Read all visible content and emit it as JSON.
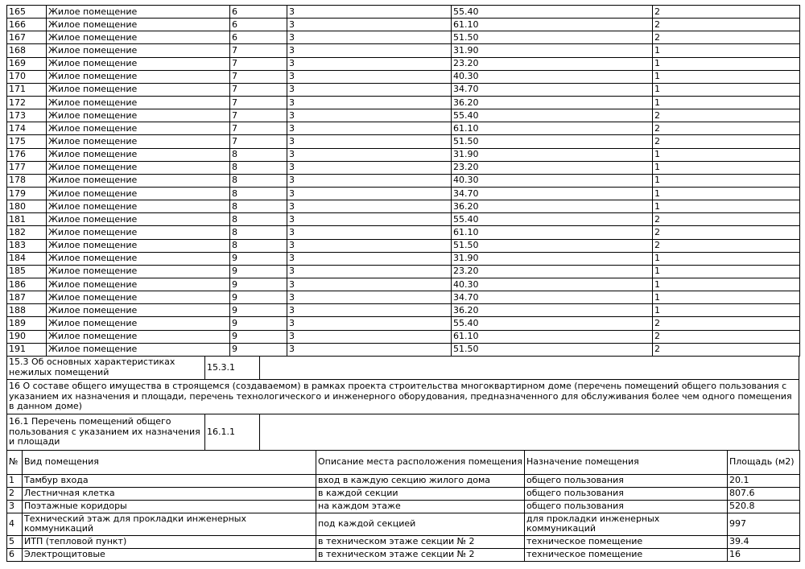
{
  "units_table": {
    "rows": [
      [
        "165",
        "Жилое помещение",
        "6",
        "3",
        "55.40",
        "2"
      ],
      [
        "166",
        "Жилое помещение",
        "6",
        "3",
        "61.10",
        "2"
      ],
      [
        "167",
        "Жилое помещение",
        "6",
        "3",
        "51.50",
        "2"
      ],
      [
        "168",
        "Жилое помещение",
        "7",
        "3",
        "31.90",
        "1"
      ],
      [
        "169",
        "Жилое помещение",
        "7",
        "3",
        "23.20",
        "1"
      ],
      [
        "170",
        "Жилое помещение",
        "7",
        "3",
        "40.30",
        "1"
      ],
      [
        "171",
        "Жилое помещение",
        "7",
        "3",
        "34.70",
        "1"
      ],
      [
        "172",
        "Жилое помещение",
        "7",
        "3",
        "36.20",
        "1"
      ],
      [
        "173",
        "Жилое помещение",
        "7",
        "3",
        "55.40",
        "2"
      ],
      [
        "174",
        "Жилое помещение",
        "7",
        "3",
        "61.10",
        "2"
      ],
      [
        "175",
        "Жилое помещение",
        "7",
        "3",
        "51.50",
        "2"
      ],
      [
        "176",
        "Жилое помещение",
        "8",
        "3",
        "31.90",
        "1"
      ],
      [
        "177",
        "Жилое помещение",
        "8",
        "3",
        "23.20",
        "1"
      ],
      [
        "178",
        "Жилое помещение",
        "8",
        "3",
        "40.30",
        "1"
      ],
      [
        "179",
        "Жилое помещение",
        "8",
        "3",
        "34.70",
        "1"
      ],
      [
        "180",
        "Жилое помещение",
        "8",
        "3",
        "36.20",
        "1"
      ],
      [
        "181",
        "Жилое помещение",
        "8",
        "3",
        "55.40",
        "2"
      ],
      [
        "182",
        "Жилое помещение",
        "8",
        "3",
        "61.10",
        "2"
      ],
      [
        "183",
        "Жилое помещение",
        "8",
        "3",
        "51.50",
        "2"
      ],
      [
        "184",
        "Жилое помещение",
        "9",
        "3",
        "31.90",
        "1"
      ],
      [
        "185",
        "Жилое помещение",
        "9",
        "3",
        "23.20",
        "1"
      ],
      [
        "186",
        "Жилое помещение",
        "9",
        "3",
        "40.30",
        "1"
      ],
      [
        "187",
        "Жилое помещение",
        "9",
        "3",
        "34.70",
        "1"
      ],
      [
        "188",
        "Жилое помещение",
        "9",
        "3",
        "36.20",
        "1"
      ],
      [
        "189",
        "Жилое помещение",
        "9",
        "3",
        "55.40",
        "2"
      ],
      [
        "190",
        "Жилое помещение",
        "9",
        "3",
        "61.10",
        "2"
      ],
      [
        "191",
        "Жилое помещение",
        "9",
        "3",
        "51.50",
        "2"
      ]
    ]
  },
  "section_15_3": {
    "label": "15.3 Об основных характеристиках нежилых помещений",
    "code": "15.3.1"
  },
  "section_16": {
    "text": "16 О составе общего имущества в строящемся (создаваемом) в рамках проекта строительства многоквартирном доме (перечень помещений общего пользования с указанием их назначения и площади, перечень технологического и инженерного оборудования, предназначенного для обслуживания более чем одного помещения в данном доме)"
  },
  "section_16_1": {
    "label": "16.1 Перечень помещений общего пользования с указанием их назначения и площади",
    "code": "16.1.1"
  },
  "common_table": {
    "headers": [
      "№",
      "Вид помещения",
      "Описание места расположения помещения",
      "Назначение помещения",
      "Площадь (м2)"
    ],
    "rows": [
      [
        "1",
        "Тамбур входа",
        "вход в каждую секцию жилого дома",
        "общего пользования",
        "20.1"
      ],
      [
        "2",
        "Лестничная клетка",
        "в каждой секции",
        "общего пользования",
        "807.6"
      ],
      [
        "3",
        "Поэтажные коридоры",
        "на каждом этаже",
        "общего пользования",
        "520.8"
      ],
      [
        "4",
        "Технический этаж для прокладки инженерных коммуникаций",
        "под каждой секцией",
        "для прокладки инженерных коммуникаций",
        "997"
      ],
      [
        "5",
        "ИТП (тепловой пункт)",
        "в техническом этаже секции № 2",
        "техническое помещение",
        "39.4"
      ],
      [
        "6",
        "Электрощитовые",
        "в техническом этаже секции № 2",
        "техническое помещение",
        "16"
      ]
    ]
  }
}
